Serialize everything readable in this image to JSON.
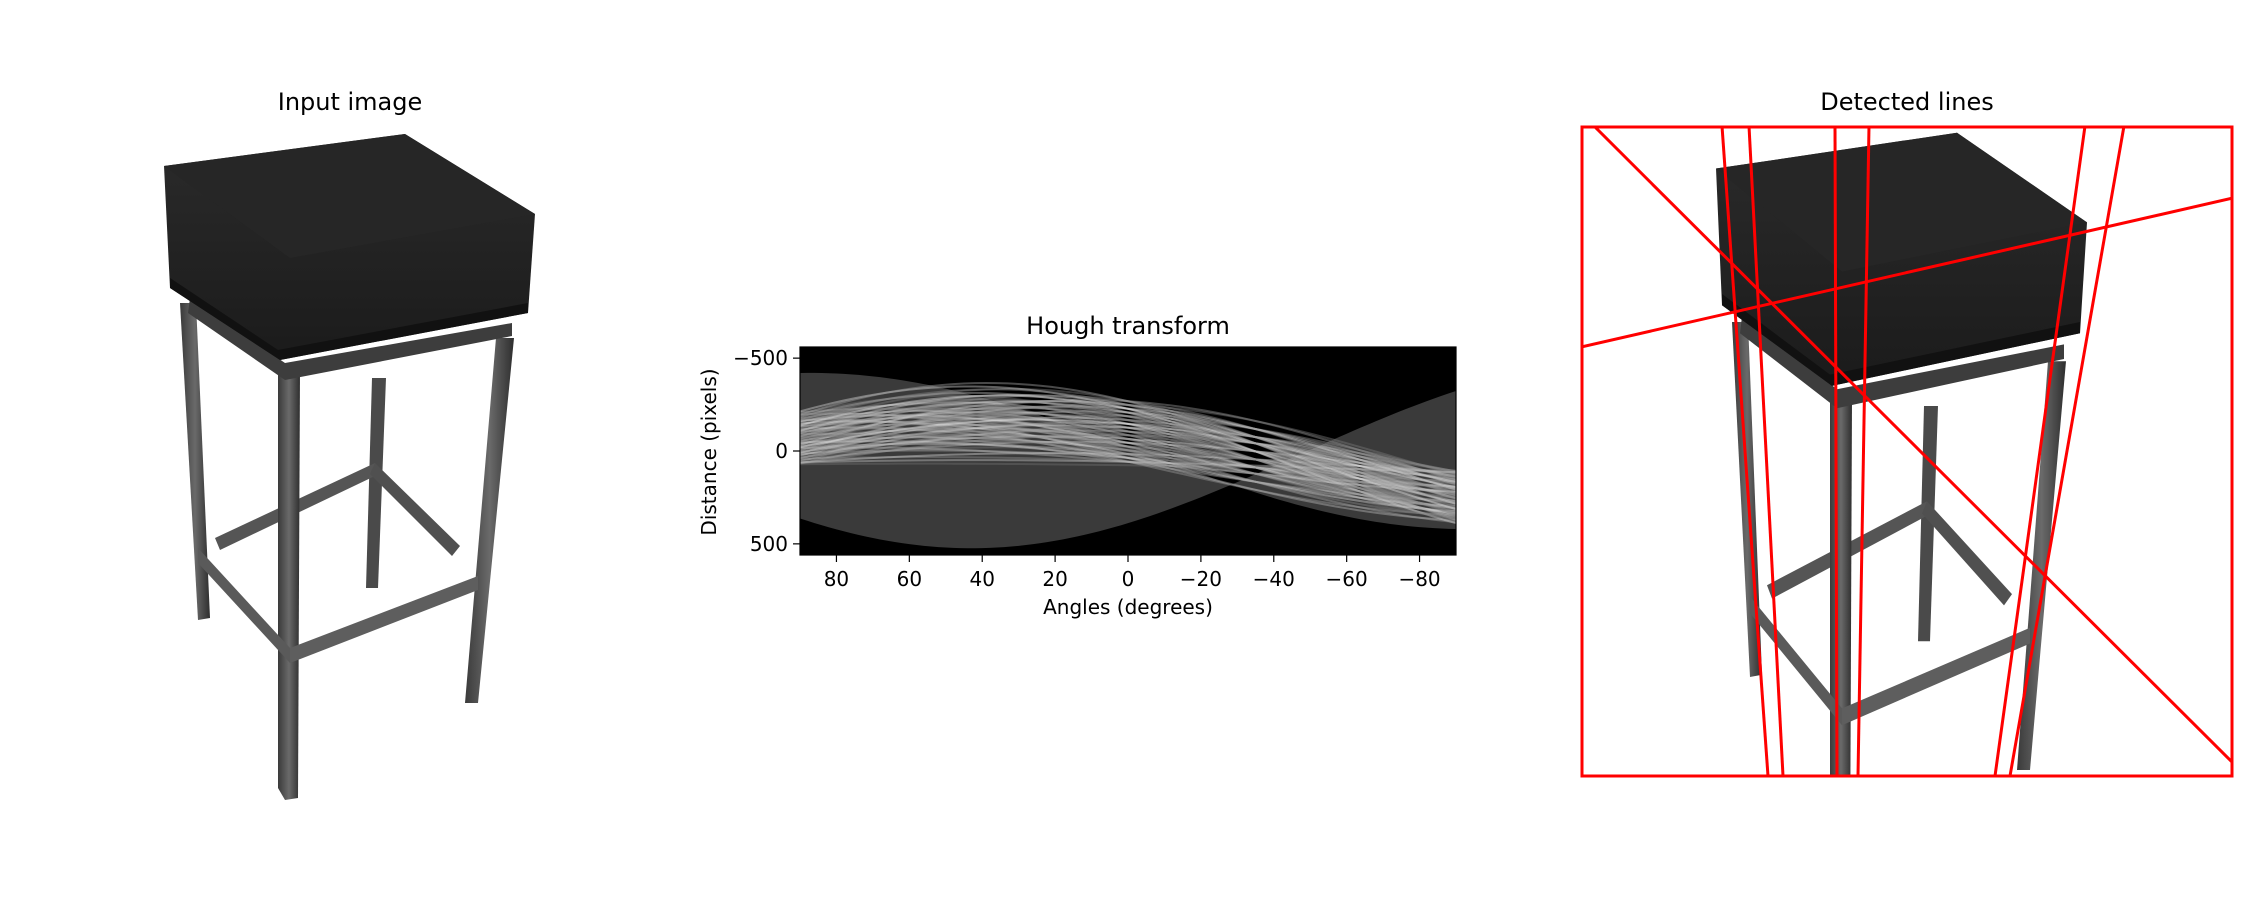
{
  "panels": {
    "input": {
      "title": "Input image"
    },
    "hough": {
      "title": "Hough transform"
    },
    "detected": {
      "title": "Detected lines"
    }
  },
  "colors": {
    "detected_line": "#ff0000",
    "stool": "#1a1a1a",
    "background": "#ffffff"
  },
  "chart_data": {
    "type": "heatmap",
    "title": "Hough transform",
    "xlabel": "Angles (degrees)",
    "ylabel": "Distance (pixels)",
    "xlim": [
      90,
      -90
    ],
    "ylim": [
      560,
      -560
    ],
    "xticks": [
      80,
      60,
      40,
      20,
      0,
      -20,
      -40,
      -60,
      -80
    ],
    "xtick_labels": [
      "80",
      "60",
      "40",
      "20",
      "0",
      "−20",
      "−40",
      "−60",
      "−80"
    ],
    "yticks": [
      -500,
      0,
      500
    ],
    "ytick_labels": [
      "−500",
      "0",
      "500"
    ],
    "colormap": "gray"
  }
}
